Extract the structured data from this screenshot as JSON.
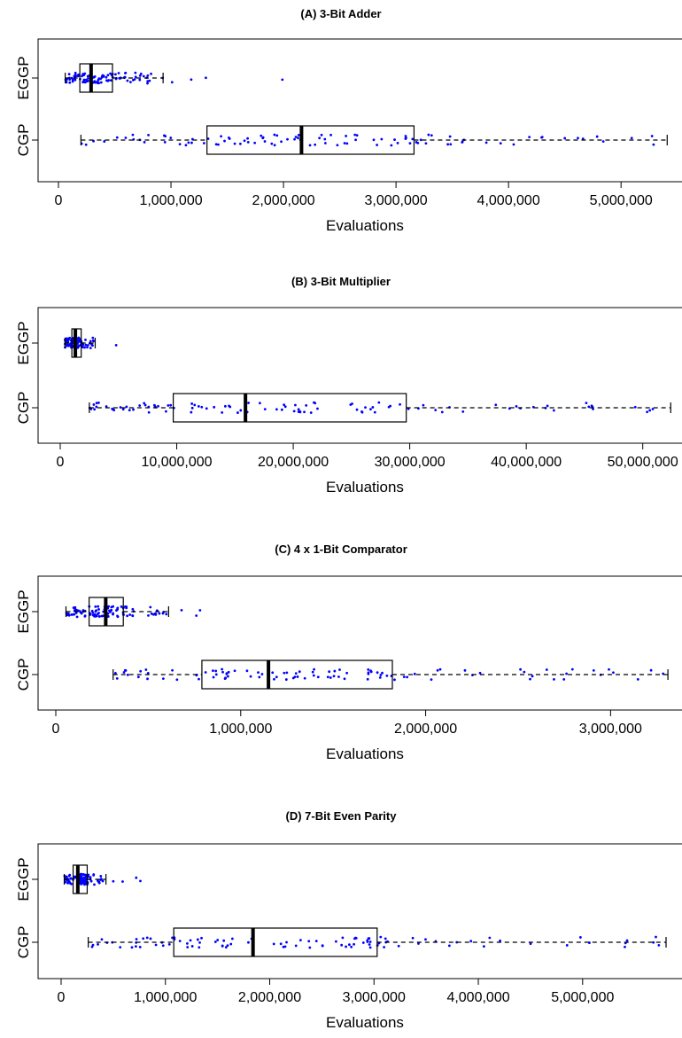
{
  "chart_data": [
    {
      "type": "boxplot",
      "title": "(A) 3-Bit Adder",
      "xlabel": "Evaluations",
      "xlim": [
        0,
        5400000
      ],
      "xticks": [
        0,
        1000000,
        2000000,
        3000000,
        4000000,
        5000000
      ],
      "xtick_labels": [
        "0",
        "1,000,000",
        "2,000,000",
        "3,000,000",
        "4,000,000",
        "5,000,000"
      ],
      "categories": [
        "EGGP",
        "CGP"
      ],
      "series": [
        {
          "name": "EGGP",
          "whisker_low": 60000,
          "q1": 190000,
          "median": 290000,
          "q3": 480000,
          "whisker_high": 930000,
          "outliers": [
            1010000,
            1180000,
            1310000,
            1990000
          ]
        },
        {
          "name": "CGP",
          "whisker_low": 200000,
          "q1": 1320000,
          "median": 2160000,
          "q3": 3160000,
          "whisker_high": 5410000,
          "outliers": []
        }
      ],
      "point_color": "#0000ff"
    },
    {
      "type": "boxplot",
      "title": "(B) 3-Bit Multiplier",
      "xlabel": "Evaluations",
      "xlim": [
        0,
        52000000
      ],
      "xticks": [
        0,
        10000000,
        20000000,
        30000000,
        40000000,
        50000000
      ],
      "xtick_labels": [
        "0",
        "10,000,000",
        "20,000,000",
        "30,000,000",
        "40,000,000",
        "50,000,000"
      ],
      "categories": [
        "EGGP",
        "CGP"
      ],
      "series": [
        {
          "name": "EGGP",
          "whisker_low": 400000,
          "q1": 1000000,
          "median": 1300000,
          "q3": 1800000,
          "whisker_high": 3000000,
          "outliers": [
            4800000
          ]
        },
        {
          "name": "CGP",
          "whisker_low": 2500000,
          "q1": 9700000,
          "median": 15900000,
          "q3": 29700000,
          "whisker_high": 52400000,
          "outliers": []
        }
      ],
      "point_color": "#0000ff"
    },
    {
      "type": "boxplot",
      "title": "(C) 4 x 1-Bit Comparator",
      "xlabel": "Evaluations",
      "xlim": [
        0,
        3300000
      ],
      "xticks": [
        0,
        1000000,
        2000000,
        3000000
      ],
      "xtick_labels": [
        "0",
        "1,000,000",
        "2,000,000",
        "3,000,000"
      ],
      "categories": [
        "EGGP",
        "CGP"
      ],
      "series": [
        {
          "name": "EGGP",
          "whisker_low": 55000,
          "q1": 180000,
          "median": 270000,
          "q3": 365000,
          "whisker_high": 610000,
          "outliers": [
            680000,
            760000,
            780000
          ]
        },
        {
          "name": "CGP",
          "whisker_low": 310000,
          "q1": 790000,
          "median": 1150000,
          "q3": 1820000,
          "whisker_high": 3310000,
          "outliers": []
        }
      ],
      "point_color": "#0000ff"
    },
    {
      "type": "boxplot",
      "title": "(D) 7-Bit Even Parity",
      "xlabel": "Evaluations",
      "xlim": [
        0,
        5800000
      ],
      "xticks": [
        0,
        1000000,
        2000000,
        3000000,
        4000000,
        5000000
      ],
      "xtick_labels": [
        "0",
        "1,000,000",
        "2,000,000",
        "3,000,000",
        "4,000,000",
        "5,000,000"
      ],
      "categories": [
        "EGGP",
        "CGP"
      ],
      "series": [
        {
          "name": "EGGP",
          "whisker_low": 30000,
          "q1": 115000,
          "median": 160000,
          "q3": 250000,
          "whisker_high": 430000,
          "outliers": [
            500000,
            590000,
            720000,
            760000
          ]
        },
        {
          "name": "CGP",
          "whisker_low": 260000,
          "q1": 1080000,
          "median": 1840000,
          "q3": 3030000,
          "whisker_high": 5800000,
          "outliers": []
        }
      ],
      "point_color": "#0000ff"
    }
  ]
}
